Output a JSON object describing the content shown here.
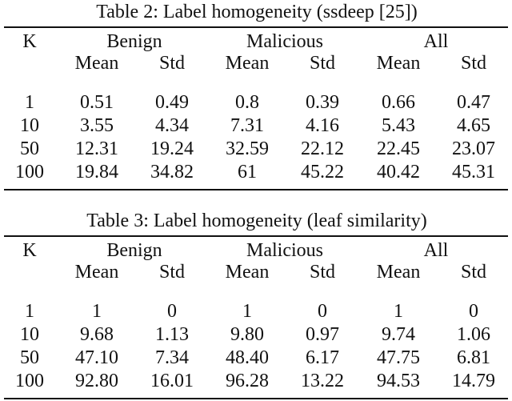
{
  "tables": [
    {
      "caption": "Table 2: Label homogeneity (ssdeep [25])",
      "headers": {
        "k": "K",
        "groups": [
          "Benign",
          "Malicious",
          "All"
        ],
        "sub": [
          "Mean",
          "Std",
          "Mean",
          "Std",
          "Mean",
          "Std"
        ]
      },
      "rows": [
        [
          "1",
          "0.51",
          "0.49",
          "0.8",
          "0.39",
          "0.66",
          "0.47"
        ],
        [
          "10",
          "3.55",
          "4.34",
          "7.31",
          "4.16",
          "5.43",
          "4.65"
        ],
        [
          "50",
          "12.31",
          "19.24",
          "32.59",
          "22.12",
          "22.45",
          "23.07"
        ],
        [
          "100",
          "19.84",
          "34.82",
          "61",
          "45.22",
          "40.42",
          "45.31"
        ]
      ]
    },
    {
      "caption": "Table 3: Label homogeneity (leaf similarity)",
      "headers": {
        "k": "K",
        "groups": [
          "Benign",
          "Malicious",
          "All"
        ],
        "sub": [
          "Mean",
          "Std",
          "Mean",
          "Std",
          "Mean",
          "Std"
        ]
      },
      "rows": [
        [
          "1",
          "1",
          "0",
          "1",
          "0",
          "1",
          "0"
        ],
        [
          "10",
          "9.68",
          "1.13",
          "9.80",
          "0.97",
          "9.74",
          "1.06"
        ],
        [
          "50",
          "47.10",
          "7.34",
          "48.40",
          "6.17",
          "47.75",
          "6.81"
        ],
        [
          "100",
          "92.80",
          "16.01",
          "96.28",
          "13.22",
          "94.53",
          "14.79"
        ]
      ]
    }
  ]
}
